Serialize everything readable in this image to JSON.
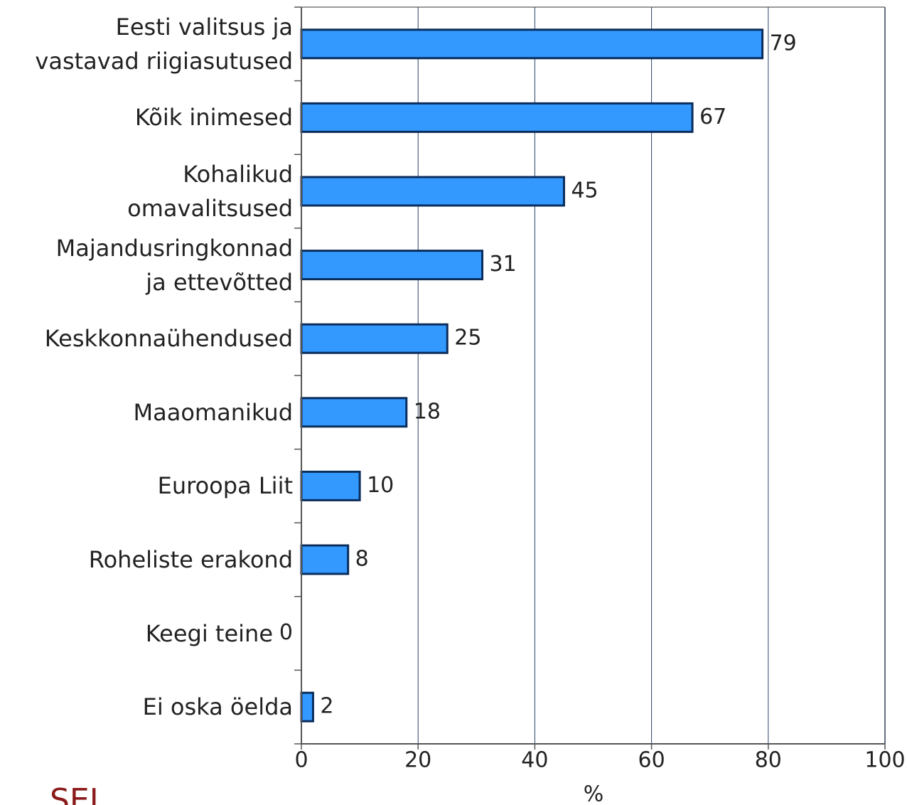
{
  "chart_data": {
    "type": "bar",
    "orientation": "horizontal",
    "categories": [
      "Eesti valitsus ja\nvastavad riigiasutused",
      "Kõik inimesed",
      "Kohalikud\nomavalitsused",
      "Majandusringkonnad\nja ettevõtted",
      "Keskkonnaühendused",
      "Maaomanikud",
      "Euroopa Liit",
      "Roheliste erakond",
      "Keegi teine",
      "Ei oska öelda"
    ],
    "values": [
      79,
      67,
      45,
      31,
      25,
      18,
      10,
      8,
      0,
      2
    ],
    "color": "#3399ff",
    "xlabel": "%",
    "xlim": [
      0,
      100
    ],
    "xticks": [
      0,
      20,
      40,
      60,
      80,
      100
    ],
    "grid": true,
    "logo": "SEI"
  }
}
